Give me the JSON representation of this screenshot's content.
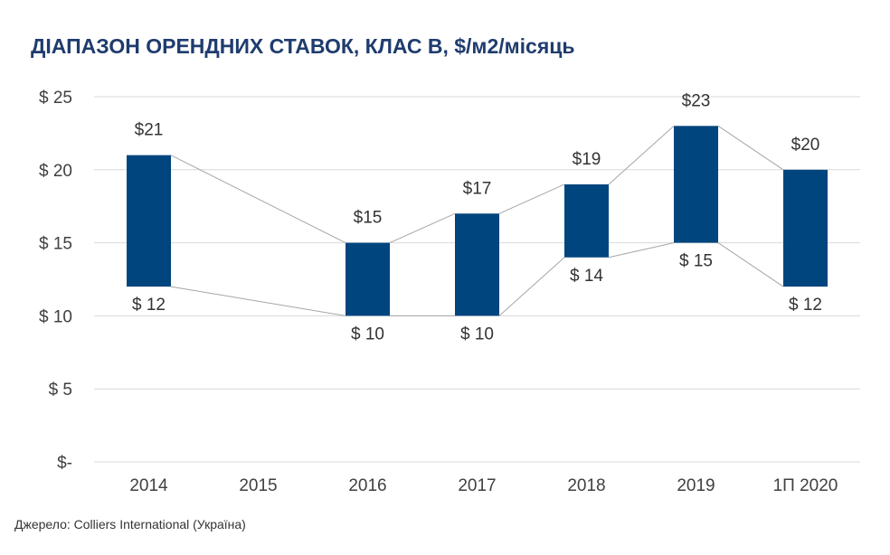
{
  "title": "ДІАПАЗОН ОРЕНДНИХ СТАВОК, КЛАС B, $/м2/місяць",
  "source": "Джерело: Colliers International (Україна)",
  "colors": {
    "bar": "#00457e",
    "connector": "#a6a6a6",
    "grid": "#d9d9d9",
    "title": "#1f3c6e"
  },
  "chart_data": {
    "type": "bar",
    "subtype": "floating-range",
    "title": "ДІАПАЗОН ОРЕНДНИХ СТАВОК, КЛАС B, $/м2/місяць",
    "xlabel": "",
    "ylabel": "",
    "categories": [
      "2014",
      "2015",
      "2016",
      "2017",
      "2018",
      "2019",
      "1П 2020"
    ],
    "series": [
      {
        "values": [
          12,
          null,
          10,
          10,
          14,
          15,
          12
        ]
      },
      {
        "values": [
          21,
          null,
          15,
          17,
          19,
          23,
          20
        ]
      }
    ],
    "high_labels": [
      "$21",
      "",
      "$15",
      "$17",
      "$19",
      "$23",
      "$20"
    ],
    "low_labels": [
      "$ 12",
      "",
      "$ 10",
      "$ 10",
      "$ 14",
      "$ 15",
      "$ 12"
    ],
    "ylim": [
      0,
      25
    ],
    "yticks": [
      0,
      5,
      10,
      15,
      20,
      25
    ],
    "ytick_labels": [
      "$-",
      "$ 5",
      "$ 10",
      "$ 15",
      "$ 20",
      "$ 25"
    ],
    "grid": true,
    "legend": "none"
  }
}
